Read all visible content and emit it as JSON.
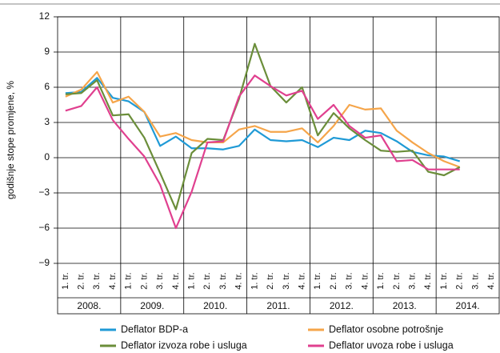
{
  "chart_data": {
    "type": "line",
    "y_label": "godišnje stope promjene, %",
    "categories": [
      "1. tr.",
      "2. tr.",
      "3. tr.",
      "4. tr.",
      "1. tr.",
      "2. tr.",
      "3. tr.",
      "4. tr.",
      "1. tr.",
      "2. tr.",
      "3. tr.",
      "4. tr.",
      "1. tr.",
      "2. tr.",
      "3. tr.",
      "4. tr.",
      "1. tr.",
      "2. tr.",
      "3. tr.",
      "4. tr.",
      "1. tr.",
      "2. tr.",
      "3. tr.",
      "4. tr.",
      "1. tr.",
      "2. tr.",
      "3. tr.",
      "4. tr."
    ],
    "years": [
      "2008.",
      "2009.",
      "2010.",
      "2011.",
      "2012.",
      "2013.",
      "2014."
    ],
    "series": [
      {
        "name": "Deflator BDP-a",
        "color": "#1f9ad6",
        "values": [
          5.5,
          5.6,
          6.8,
          5.1,
          4.8,
          3.9,
          1.0,
          1.8,
          0.8,
          0.8,
          0.7,
          1.0,
          2.4,
          1.5,
          1.4,
          1.5,
          0.9,
          1.7,
          1.5,
          2.3,
          2.1,
          1.4,
          0.5,
          0.2,
          0.1,
          -0.3,
          null,
          null
        ]
      },
      {
        "name": "Deflator osobne potrošnje",
        "color": "#f5a54a",
        "values": [
          5.2,
          5.8,
          7.3,
          4.7,
          5.2,
          3.9,
          1.8,
          2.1,
          1.5,
          1.3,
          1.3,
          2.4,
          2.7,
          2.2,
          2.2,
          2.5,
          1.3,
          2.7,
          4.5,
          4.1,
          4.2,
          2.3,
          1.3,
          0.4,
          -0.3,
          -0.8,
          null,
          null
        ]
      },
      {
        "name": "Deflator izvoza robe i usluga",
        "color": "#6b8e3a",
        "values": [
          5.4,
          5.5,
          6.6,
          3.6,
          3.7,
          1.7,
          -1.3,
          -4.4,
          0.4,
          1.6,
          1.5,
          5.0,
          9.7,
          6.1,
          4.7,
          6.0,
          1.9,
          3.8,
          2.5,
          1.5,
          0.6,
          0.5,
          0.6,
          -1.2,
          -1.5,
          -0.8,
          null,
          null
        ]
      },
      {
        "name": "Deflator uvoza robe i usluga",
        "color": "#e0408f",
        "values": [
          4.0,
          4.4,
          6.0,
          3.2,
          1.6,
          0.1,
          -2.3,
          -6.0,
          -2.9,
          1.3,
          1.4,
          5.2,
          7.0,
          6.1,
          5.3,
          5.7,
          3.3,
          4.5,
          2.7,
          1.7,
          1.9,
          -0.3,
          -0.2,
          -1.0,
          -1.0,
          -1.0,
          null,
          null
        ]
      }
    ],
    "ylim": [
      -9,
      12
    ],
    "yticks": [
      {
        "value": -9,
        "label": "−9"
      },
      {
        "value": -6,
        "label": "−6"
      },
      {
        "value": -3,
        "label": "−3"
      },
      0,
      3,
      6,
      9,
      12
    ],
    "grid": true
  }
}
